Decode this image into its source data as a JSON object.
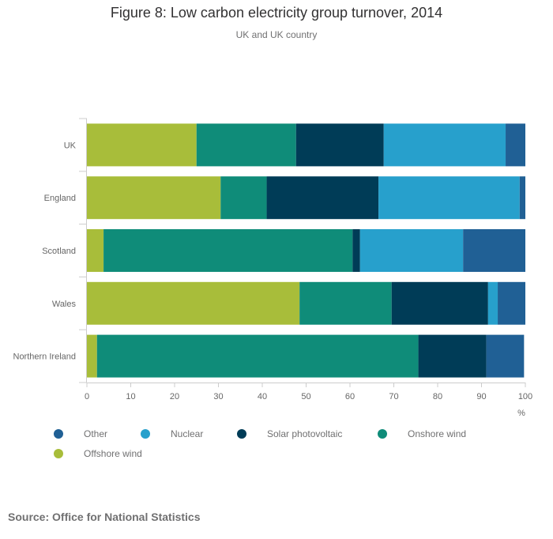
{
  "chart_data": {
    "type": "bar",
    "orientation": "horizontal",
    "stacked": true,
    "title": "Figure 8: Low carbon electricity group turnover, 2014",
    "subtitle": "UK and UK country",
    "xlabel": "%",
    "xlim": [
      0,
      100
    ],
    "xticks": [
      0,
      10,
      20,
      30,
      40,
      50,
      60,
      70,
      80,
      90,
      100
    ],
    "categories": [
      "UK",
      "England",
      "Scotland",
      "Wales",
      "Northern Ireland"
    ],
    "series": [
      {
        "name": "Offshore wind",
        "color": "#a8bd3a",
        "values": [
          25,
          30.5,
          3.8,
          48.5,
          2.3
        ]
      },
      {
        "name": "Onshore wind",
        "color": "#0f8c79",
        "values": [
          22.7,
          10.5,
          56.8,
          21,
          73.3
        ]
      },
      {
        "name": "Solar photovoltaic",
        "color": "#003c57",
        "values": [
          20,
          25.5,
          1.7,
          22,
          15.5
        ]
      },
      {
        "name": "Nuclear",
        "color": "#27a0cc",
        "values": [
          27.8,
          32.2,
          23.5,
          2.2,
          0
        ]
      },
      {
        "name": "Other",
        "color": "#206095",
        "values": [
          4.5,
          1.3,
          14.2,
          6.3,
          8.6
        ]
      }
    ],
    "legend_order": [
      "Other",
      "Nuclear",
      "Solar photovoltaic",
      "Onshore wind",
      "Offshore wind"
    ],
    "legend_position": "bottom",
    "grid": false
  },
  "source": "Source: Office for National Statistics"
}
